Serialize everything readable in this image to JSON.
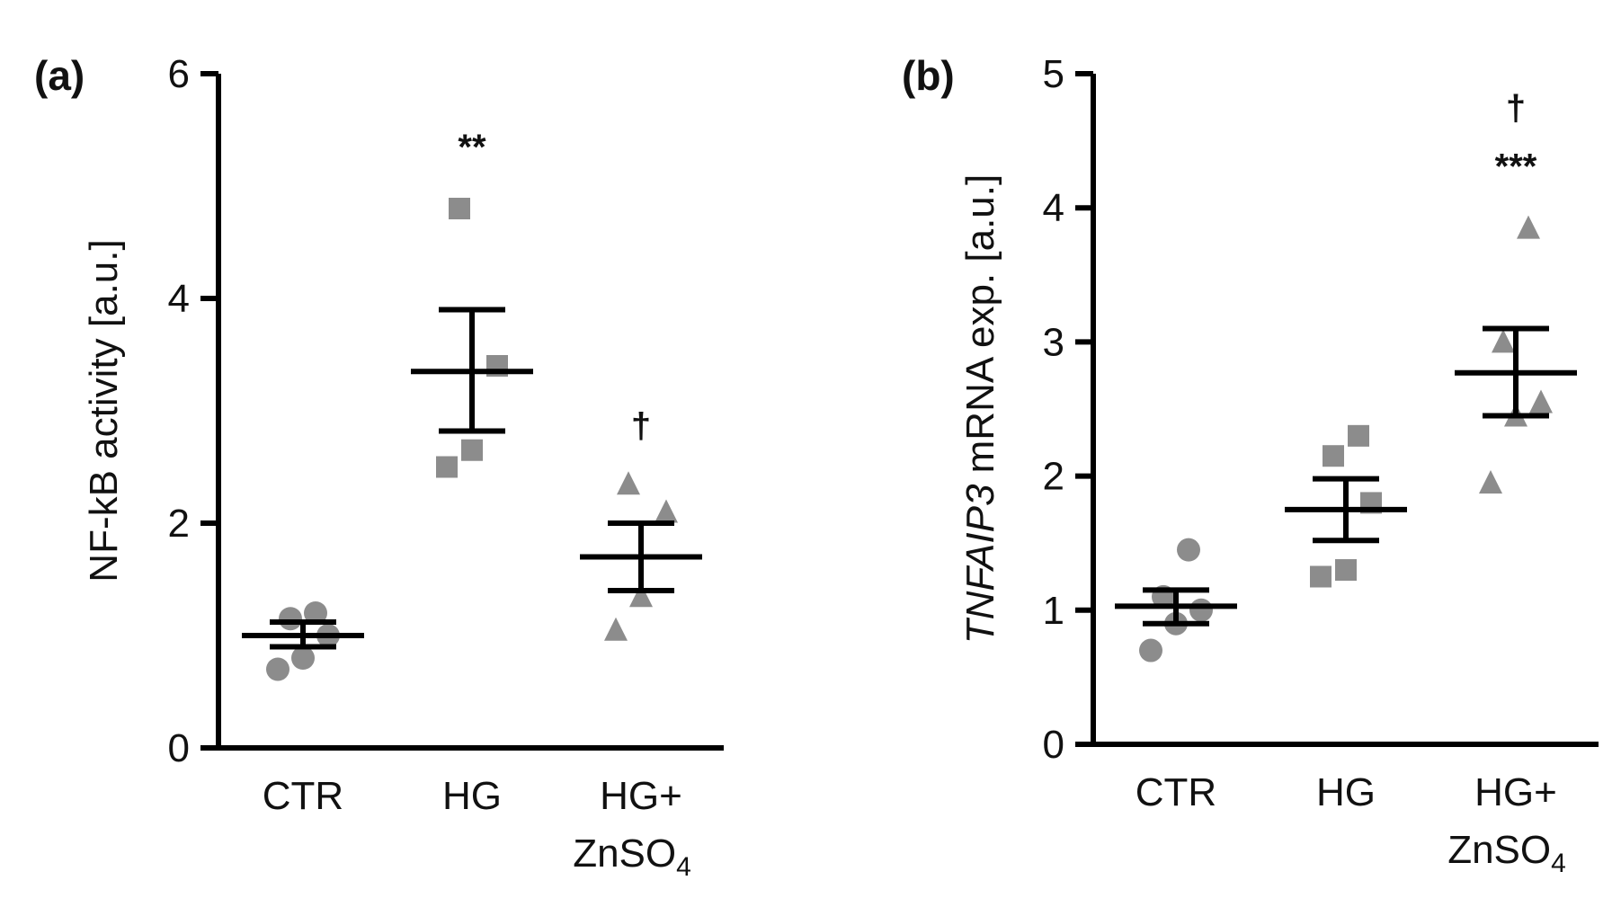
{
  "chart_data": [
    {
      "type": "scatter",
      "panel": "(a)",
      "ylabel": "NF-kB activity [a.u.]",
      "ylim": [
        0,
        6
      ],
      "yticks": [
        "0",
        "2",
        "4",
        "6"
      ],
      "categories": [
        {
          "line1": "CTR",
          "line2": ""
        },
        {
          "line1": "HG",
          "line2": ""
        },
        {
          "line1": "HG+",
          "line2": "ZnSO",
          "line2_sub": "4"
        }
      ],
      "marker_color": "#8c8c8c",
      "groups": [
        {
          "marker": "circle",
          "points": [
            0.7,
            0.8,
            1.0,
            1.15,
            1.2
          ],
          "mean": 1.0,
          "sem_low": 0.9,
          "sem_high": 1.12,
          "sig": ""
        },
        {
          "marker": "square",
          "points": [
            2.5,
            2.65,
            3.4,
            4.8
          ],
          "mean": 3.35,
          "sem_low": 2.82,
          "sem_high": 3.9,
          "sig": "**"
        },
        {
          "marker": "triangle",
          "points": [
            1.05,
            1.35,
            2.1,
            2.35
          ],
          "mean": 1.7,
          "sem_low": 1.4,
          "sem_high": 2.0,
          "sig": "†"
        }
      ]
    },
    {
      "type": "scatter",
      "panel": "(b)",
      "ylabel_italic": "TNFAIP3",
      "ylabel_rest": " mRNA exp. [a.u.]",
      "ylim": [
        0,
        5
      ],
      "yticks": [
        "0",
        "1",
        "2",
        "3",
        "4",
        "5"
      ],
      "categories": [
        {
          "line1": "CTR",
          "line2": ""
        },
        {
          "line1": "HG",
          "line2": ""
        },
        {
          "line1": "HG+",
          "line2": "ZnSO",
          "line2_sub": "4"
        }
      ],
      "marker_color": "#8c8c8c",
      "groups": [
        {
          "marker": "circle",
          "points": [
            0.7,
            0.9,
            1.0,
            1.1,
            1.45
          ],
          "mean": 1.03,
          "sem_low": 0.9,
          "sem_high": 1.15,
          "sig": ""
        },
        {
          "marker": "square",
          "points": [
            1.25,
            1.3,
            1.8,
            2.15,
            2.3
          ],
          "mean": 1.75,
          "sem_low": 1.52,
          "sem_high": 1.98,
          "sig": ""
        },
        {
          "marker": "triangle",
          "points": [
            1.95,
            2.45,
            2.55,
            3.0,
            3.85
          ],
          "mean": 2.77,
          "sem_low": 2.45,
          "sem_high": 3.1,
          "sig": "***",
          "sig2": "†"
        }
      ]
    }
  ]
}
